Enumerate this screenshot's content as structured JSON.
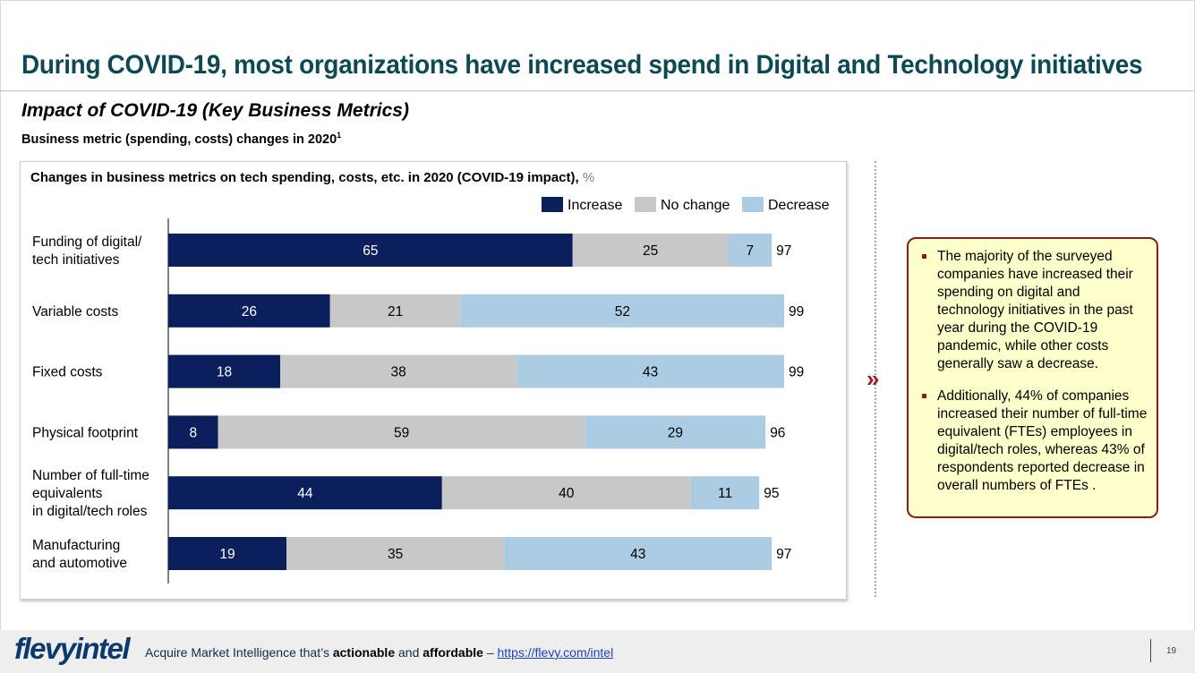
{
  "header": {
    "title": "During COVID-19, most organizations have increased spend in Digital and Technology initiatives",
    "subtitle": "Impact of COVID-19 (Key Business Metrics)",
    "sub_subtitle": "Business metric (spending, costs) changes in 2020",
    "sub_subtitle_sup": "1"
  },
  "chart_data": {
    "type": "bar",
    "orientation": "horizontal",
    "stacked": true,
    "title": "Changes in business metrics on tech spending, costs, etc. in 2020 (COVID-19 impact),",
    "unit": "%",
    "categories": [
      "Funding of digital/ tech initiatives",
      "Variable costs",
      "Fixed costs",
      "Physical footprint",
      "Number of full-time equivalents in digital/tech roles",
      "Manufacturing and automotive"
    ],
    "category_lines": [
      [
        "Funding of digital/",
        "tech initiatives"
      ],
      [
        "Variable costs"
      ],
      [
        "Fixed costs"
      ],
      [
        "Physical footprint"
      ],
      [
        "Number of full-time",
        "equivalents",
        "in digital/tech roles"
      ],
      [
        "Manufacturing",
        "and automotive"
      ]
    ],
    "series": [
      {
        "name": "Increase",
        "color": "#0a1f5c",
        "label_color": "#ffffff",
        "values": [
          65,
          26,
          18,
          8,
          44,
          19
        ]
      },
      {
        "name": "No change",
        "color": "#c8c8c8",
        "label_color": "#000000",
        "values": [
          25,
          21,
          38,
          59,
          40,
          35
        ]
      },
      {
        "name": "Decrease",
        "color": "#abcce3",
        "label_color": "#000000",
        "values": [
          7,
          52,
          43,
          29,
          11,
          43
        ]
      }
    ],
    "totals": [
      97,
      99,
      99,
      96,
      95,
      97
    ],
    "legend_position": "top-right",
    "grid": false
  },
  "callout": {
    "bullets": [
      "The majority of the surveyed companies have increased their spending on digital and technology initiatives in the past year during the COVID-19 pandemic, while other costs generally saw a decrease.",
      "Additionally, 44% of companies increased their number of full-time equivalent (FTEs) employees in digital/tech roles, whereas 43% of respondents reported decrease in overall numbers of FTEs ."
    ],
    "chevron": "»"
  },
  "footer": {
    "logo_part1": "flevy",
    "logo_part2": "intel",
    "tagline_prefix": "Acquire Market Intelligence that’s ",
    "tagline_bold1": "actionable",
    "tagline_and": " and ",
    "tagline_bold2": "affordable",
    "tagline_dash": " – ",
    "link": "https://flevy.com/intel",
    "page_number": "19"
  }
}
